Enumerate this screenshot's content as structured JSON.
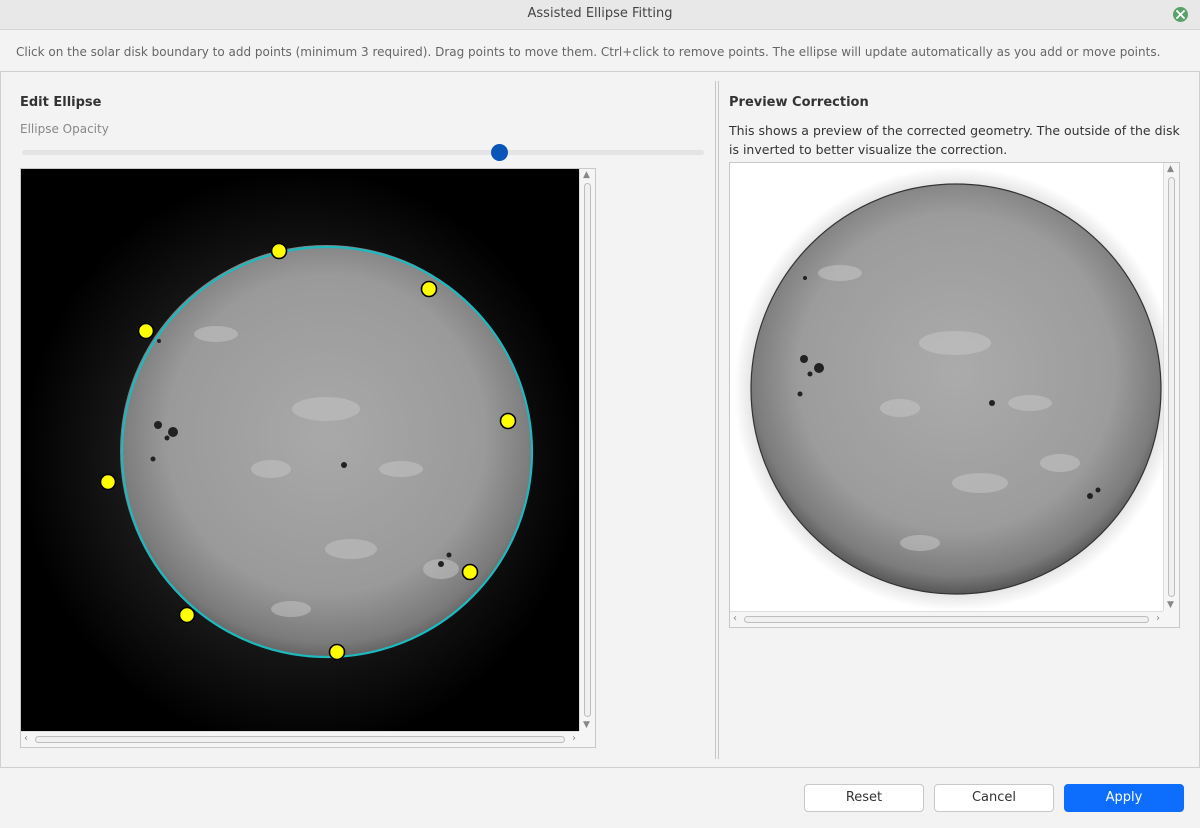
{
  "window": {
    "title": "Assisted Ellipse Fitting"
  },
  "instructions": "Click on the solar disk boundary to add points (minimum 3 required). Drag points to move them. Ctrl+click to remove points. The ellipse will update automatically as you add or move points.",
  "edit_panel": {
    "title": "Edit Ellipse",
    "opacity_label": "Ellipse Opacity",
    "opacity_value": 0.7
  },
  "preview_panel": {
    "title": "Preview Correction",
    "description": "This shows a preview of the corrected geometry. The outside of the disk is inverted to better visualize the correction."
  },
  "buttons": {
    "reset": "Reset",
    "cancel": "Cancel",
    "apply": "Apply"
  },
  "colors": {
    "ellipse": "#1fb8be",
    "control_point": "#ffff00",
    "accent": "#0d6efd",
    "slider_handle": "#0a55b8"
  }
}
